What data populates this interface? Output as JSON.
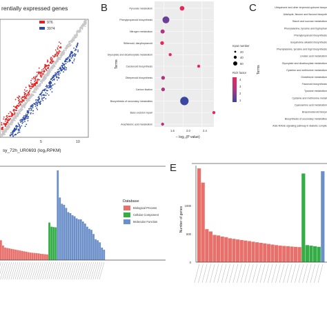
{
  "panels": {
    "B": "B",
    "C": "C",
    "E": "E"
  },
  "colors": {
    "bio": "#e8706b",
    "cell": "#35ad46",
    "mol": "#6b8fc8",
    "up": "#e51f1f",
    "down": "#2d4ba6",
    "nochange": "#c8c8c8",
    "rich_high": "#e8265d",
    "rich_low": "#3b46a0"
  },
  "chart_data": [
    {
      "type": "scatter",
      "panel": "A",
      "title": "rentially expressed genes",
      "xlabel": "sy_72h_UR0693 (log₂RPKM)",
      "legend": [
        "976",
        "3974"
      ],
      "x_ticks": [
        "5",
        "10"
      ],
      "series": [
        {
          "values": [
            [
              0.5,
              0.6
            ],
            [
              1.2,
              1.5
            ],
            [
              2.0,
              2.4
            ],
            [
              2.8,
              3.1
            ],
            [
              3.5,
              3.9
            ],
            [
              4.2,
              4.6
            ],
            [
              5.0,
              5.3
            ],
            [
              5.8,
              6.0
            ],
            [
              6.5,
              6.8
            ],
            [
              7.2,
              7.5
            ]
          ]
        },
        {
          "values": [
            [
              1.0,
              2.3
            ],
            [
              2.0,
              3.2
            ],
            [
              3.0,
              4.4
            ],
            [
              4.0,
              5.3
            ],
            [
              5.0,
              6.4
            ],
            [
              6.0,
              7.3
            ]
          ]
        },
        {
          "values": [
            [
              1.5,
              0.4
            ],
            [
              2.5,
              1.2
            ],
            [
              3.5,
              2.0
            ],
            [
              4.5,
              3.1
            ],
            [
              5.5,
              4.0
            ],
            [
              6.5,
              5.0
            ],
            [
              7.5,
              6.1
            ]
          ]
        }
      ]
    },
    {
      "type": "scatter",
      "panel": "B",
      "ylabel": "Terms",
      "xlabel": "− log₁₀(P value)",
      "x_ticks": [
        "1.6",
        "2.0",
        "2.4"
      ],
      "xlim": [
        1.4,
        2.65
      ],
      "categories": [
        "Pyruvate metabolism",
        "Phenylpropanoid biosynthesis",
        "Nitrogen metabolism",
        "Stilbenoid, diarylheptanoid",
        "Glyoxylate and dicarboxylate metabolism",
        "Carotenoid biosynthesis",
        "Diterpenoid biosynthesis",
        "Carbon fixation",
        "Biosynthesis of secondary metabolites",
        "Base excision repair",
        "Arachidonic acid metabolism"
      ],
      "category_labels": [
        "Pyruvate metabolism",
        "Phenylpropanoid biosynthesis",
        "Nitrogen metabolism",
        "Stilbenoid, diarylheptanoid",
        "Glyoxylate and dicarboxylate metabolism",
        "Carotenoid biosynthesis",
        "Diterpenoid biosynthesis",
        "Carbon fixation",
        "Biosynthesis of secondary metabolites",
        "Base excision repair",
        "Arachidonic acid metabolism"
      ],
      "x_values": [
        1.98,
        1.64,
        1.57,
        1.56,
        1.73,
        2.33,
        1.58,
        1.58,
        2.03,
        2.65,
        1.57
      ],
      "input_number": [
        20,
        60,
        15,
        10,
        5,
        5,
        10,
        10,
        100,
        5,
        5
      ],
      "rich_factor": [
        4,
        2,
        3,
        4,
        4,
        4,
        3,
        3,
        1,
        4,
        3
      ],
      "legend_size_title": "Input number",
      "legend_size_values": [
        "20",
        "40",
        "60"
      ],
      "legend_color_title": "Rich factor",
      "legend_color_values": [
        "4",
        "3",
        "2",
        "1"
      ]
    },
    {
      "type": "table",
      "panel": "C",
      "ylabel": "Terms",
      "terms": [
        "Ubiquinone and other terpenoid-quinone biosyn",
        "Aldehyde, flavone and flavonol biosynth",
        "Starch and sucrose metabolism",
        "Phenylalanine, tyrosine and tryptophan",
        "Phenylpropanoid biosynthesis",
        "Isoquinoline alkaloid biosynthesis",
        "Phenylalanine, tyrosine and trypt biosynthesis",
        "Linoleic acid metabolism",
        "Glyoxylate and dicarboxylate metabolism",
        "Cysteine and methionine metabolism",
        "Glutathione metabolism",
        "Flavonoid biosynthesis",
        "Tyrosine metabolism",
        "Cysteine and methionine metab",
        "Cyanoamino acid metabolism",
        "Brassinosteroid biosyn",
        "Biosynthesis of secondary metabolites",
        "AGE-RAGE signaling pathway in diabetic complic"
      ]
    },
    {
      "type": "bar",
      "panel": "D",
      "legend_title": "Database",
      "series": [
        {
          "name": "Biological Process",
          "values": [
            95,
            70,
            60,
            58,
            56,
            54,
            52,
            50,
            48,
            46,
            44,
            42,
            40,
            38,
            36,
            35,
            34,
            33,
            32,
            30,
            29,
            28,
            27
          ]
        },
        {
          "name": "Cellular Component",
          "values": [
            180,
            160,
            158,
            157
          ]
        },
        {
          "name": "Molecular Function",
          "values": [
            430,
            300,
            270,
            265,
            250,
            230,
            225,
            215,
            210,
            200,
            195,
            195,
            185,
            175,
            160,
            150,
            145,
            125,
            100,
            95,
            85,
            60,
            50
          ]
        }
      ]
    },
    {
      "type": "bar",
      "panel": "E",
      "ylabel": "Number of genes",
      "y_ticks": [
        "0",
        "500",
        "1000"
      ],
      "ylim": [
        0,
        1700
      ],
      "series": [
        {
          "name": "Biological Process",
          "values": [
            1650,
            1400,
            580,
            540,
            480,
            470,
            450,
            440,
            420,
            410,
            400,
            390,
            380,
            370,
            360,
            350,
            340,
            330,
            320,
            310,
            300,
            290,
            285,
            280,
            275,
            270,
            265
          ]
        },
        {
          "name": "Cellular Component",
          "values": [
            1560,
            300,
            290,
            280,
            270
          ]
        },
        {
          "name": "Molecular Function",
          "values": [
            1600
          ]
        }
      ]
    }
  ]
}
